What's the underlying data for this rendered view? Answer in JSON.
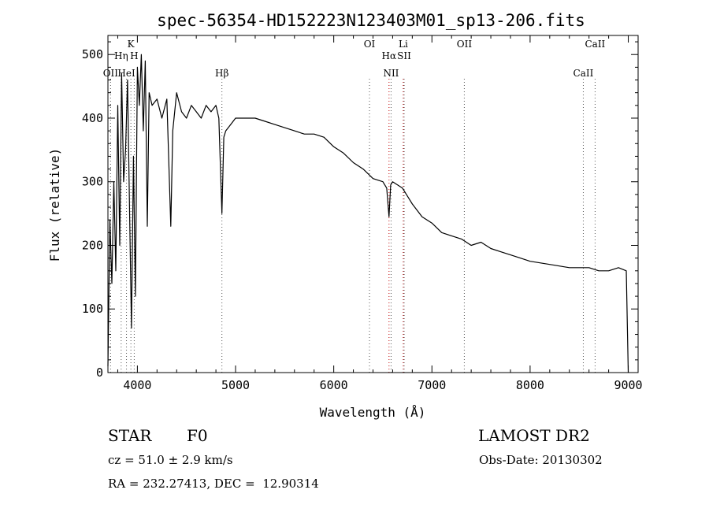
{
  "chart_data": {
    "type": "line",
    "title": "spec-56354-HD152223N123403M01_sp13-206.fits",
    "xlabel": "Wavelength (Å)",
    "ylabel": "Flux (relative)",
    "xlim": [
      3700,
      9100
    ],
    "ylim": [
      0,
      530
    ],
    "xticks": [
      4000,
      5000,
      6000,
      7000,
      8000,
      9000
    ],
    "yticks": [
      0,
      100,
      200,
      300,
      400,
      500
    ],
    "grid": false,
    "series": [
      {
        "x": [
          3700,
          3720,
          3740,
          3760,
          3780,
          3800,
          3820,
          3840,
          3860,
          3880,
          3900,
          3920,
          3940,
          3960,
          3980,
          4000,
          4020,
          4040,
          4060,
          4080,
          4101,
          4120,
          4150,
          4200,
          4250,
          4300,
          4340,
          4360,
          4400,
          4450,
          4500,
          4550,
          4600,
          4650,
          4700,
          4750,
          4800,
          4830,
          4861,
          4880,
          4900,
          4950,
          5000,
          5100,
          5200,
          5300,
          5400,
          5500,
          5600,
          5700,
          5800,
          5900,
          6000,
          6100,
          6200,
          6300,
          6400,
          6500,
          6540,
          6563,
          6580,
          6600,
          6700,
          6800,
          6900,
          7000,
          7100,
          7200,
          7300,
          7400,
          7500,
          7600,
          7700,
          7800,
          7900,
          8000,
          8200,
          8400,
          8600,
          8700,
          8800,
          8900,
          8980,
          9000
        ],
        "y": [
          10,
          240,
          140,
          300,
          160,
          420,
          200,
          470,
          300,
          350,
          460,
          260,
          70,
          340,
          120,
          480,
          420,
          500,
          380,
          490,
          230,
          440,
          420,
          430,
          400,
          430,
          230,
          380,
          440,
          410,
          400,
          420,
          410,
          400,
          420,
          410,
          420,
          400,
          250,
          370,
          380,
          390,
          400,
          400,
          400,
          395,
          390,
          385,
          380,
          375,
          375,
          370,
          355,
          345,
          330,
          320,
          305,
          300,
          290,
          245,
          295,
          300,
          290,
          265,
          245,
          235,
          220,
          215,
          210,
          200,
          205,
          195,
          190,
          185,
          180,
          175,
          170,
          165,
          165,
          160,
          160,
          165,
          160,
          0
        ]
      }
    ],
    "annotations": [
      {
        "label": "OII",
        "x": 3727
      },
      {
        "label": "Hη",
        "x": 3835
      },
      {
        "label": "HeI",
        "x": 3889
      },
      {
        "label": "K",
        "x": 3934
      },
      {
        "label": "H",
        "x": 3968
      },
      {
        "label": "Hβ",
        "x": 4861
      },
      {
        "label": "OI",
        "x": 6364
      },
      {
        "label": "NII",
        "x": 6584
      },
      {
        "label": "Hα",
        "x": 6563
      },
      {
        "label": "SII",
        "x": 6717
      },
      {
        "label": "Li",
        "x": 6708
      },
      {
        "label": "OII",
        "x": 7330
      },
      {
        "label": "CaII",
        "x": 8542
      },
      {
        "label": "CaII",
        "x": 8662
      }
    ]
  },
  "info": {
    "class": "STAR",
    "subclass": "F0",
    "survey": "LAMOST DR2",
    "cz": "cz = 51.0 ± 2.9 km/s",
    "obs_date": "Obs-Date: 20130302",
    "coords": "RA = 232.27413, DEC =  12.90314"
  }
}
